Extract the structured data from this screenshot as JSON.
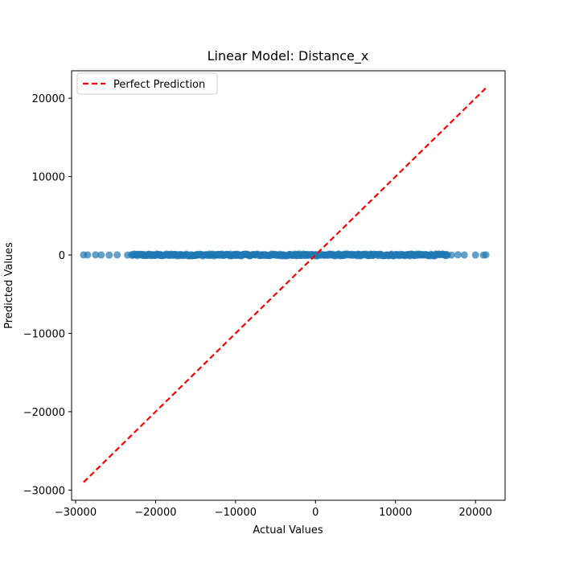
{
  "chart_data": {
    "type": "scatter",
    "title": "Linear Model: Distance_x",
    "xlabel": "Actual Values",
    "ylabel": "Predicted Values",
    "xlim": [
      -30500,
      23700
    ],
    "ylim": [
      -31300,
      23500
    ],
    "xticks": [
      -30000,
      -20000,
      -10000,
      0,
      10000,
      20000
    ],
    "yticks": [
      -30000,
      -20000,
      -10000,
      0,
      10000,
      20000
    ],
    "tick_labels_x": [
      "−30000",
      "−20000",
      "−10000",
      "0",
      "10000",
      "20000"
    ],
    "tick_labels_y": [
      "−30000",
      "−20000",
      "−10000",
      "0",
      "10000",
      "20000"
    ],
    "grid": false,
    "legend_position": "top-left",
    "colors": {
      "scatter": "#1f77b4",
      "reference_line": "#ff0000"
    },
    "series": [
      {
        "kind": "scatter",
        "x_range": [
          -29000,
          21300
        ],
        "dense_x_range": [
          -23000,
          16500
        ],
        "outliers_x": [
          -29000,
          -28500,
          -27500,
          -26800,
          -25800,
          -24800,
          -23500,
          17000,
          17800,
          18600,
          20000,
          21000,
          21300
        ],
        "predicted_value": 0,
        "predicted_spread": 120
      },
      {
        "name": "Perfect Prediction",
        "kind": "line",
        "style": "dashed",
        "x": [
          -29000,
          21300
        ],
        "y": [
          -29000,
          21300
        ]
      }
    ],
    "legend": [
      {
        "label": "Perfect Prediction",
        "style": "dashed",
        "color": "#ff0000"
      }
    ]
  }
}
